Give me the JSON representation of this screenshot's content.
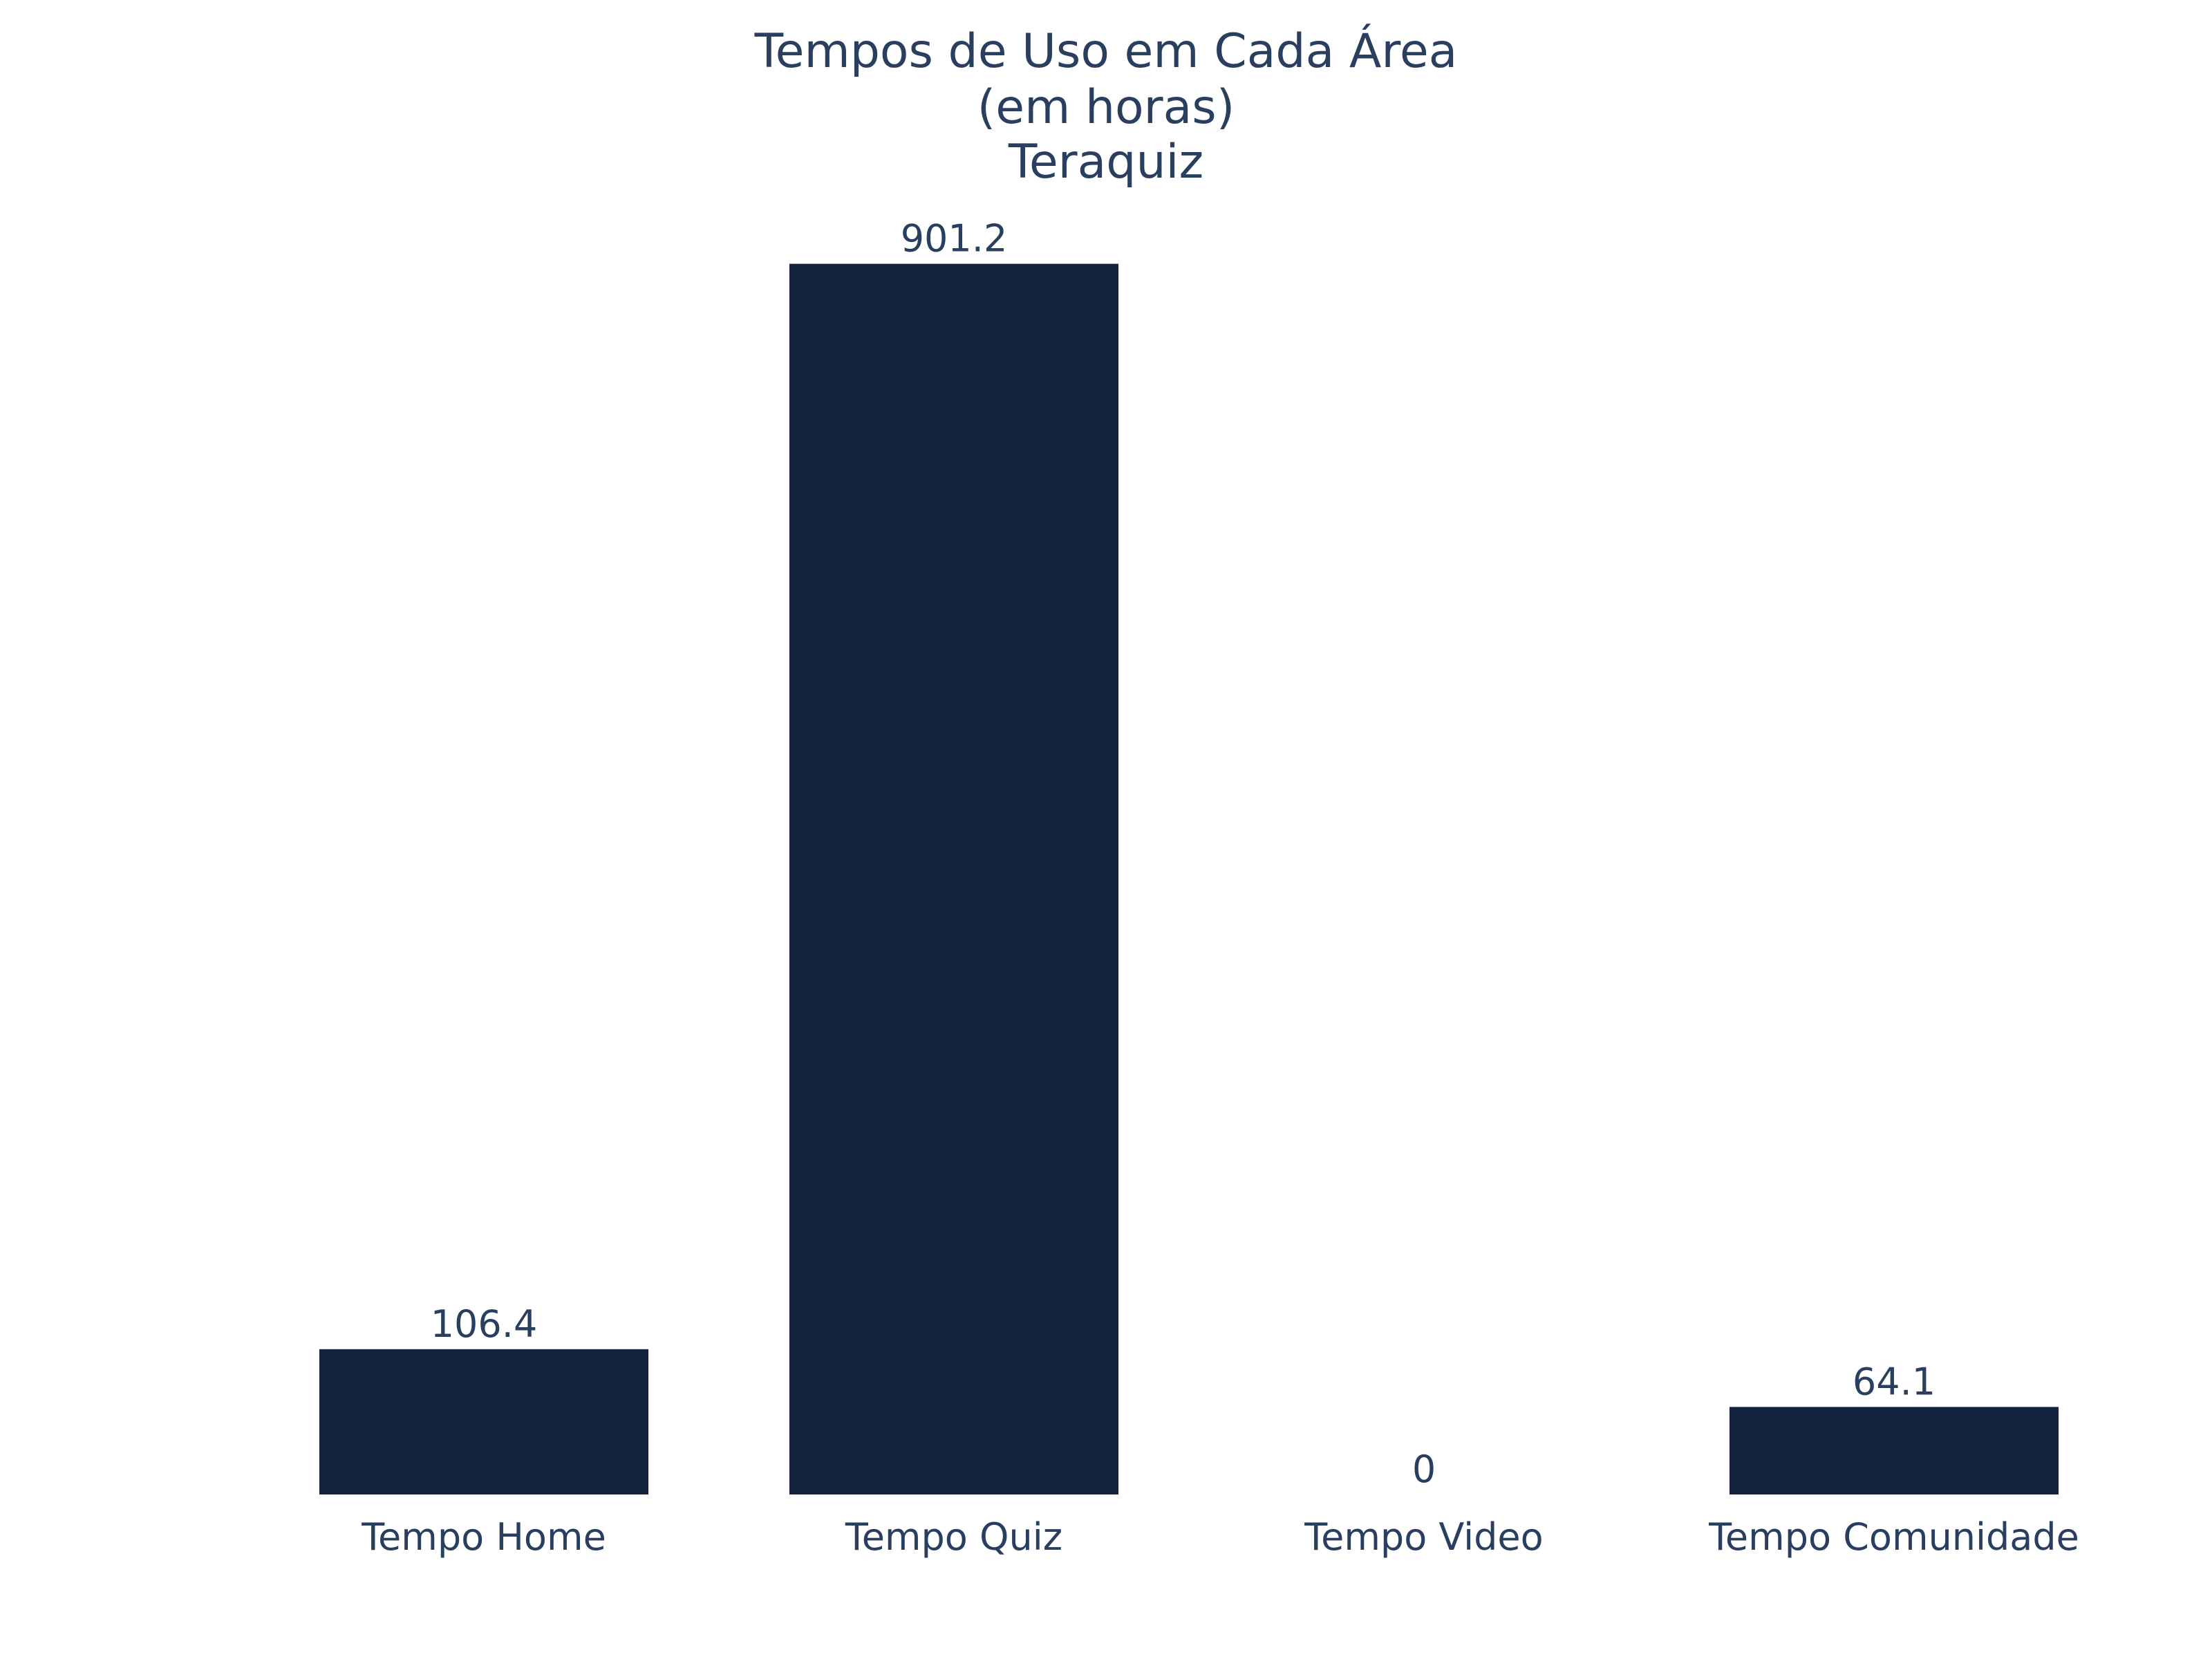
{
  "chart_data": {
    "type": "bar",
    "title_lines": [
      "Tempos de Uso em Cada Área",
      "(em horas)",
      "Teraquiz"
    ],
    "categories": [
      "Tempo Home",
      "Tempo Quiz",
      "Tempo Video",
      "Tempo Comunidade"
    ],
    "values": [
      106.4,
      901.2,
      0,
      64.1
    ],
    "value_labels": [
      "106.4",
      "901.2",
      "0",
      "64.1"
    ],
    "xlabel": "",
    "ylabel": "",
    "ylim": [
      0,
      948.6
    ],
    "grid": false,
    "legend": "none",
    "bar_color": "#13233d",
    "text_color": "#2a3f5f"
  }
}
